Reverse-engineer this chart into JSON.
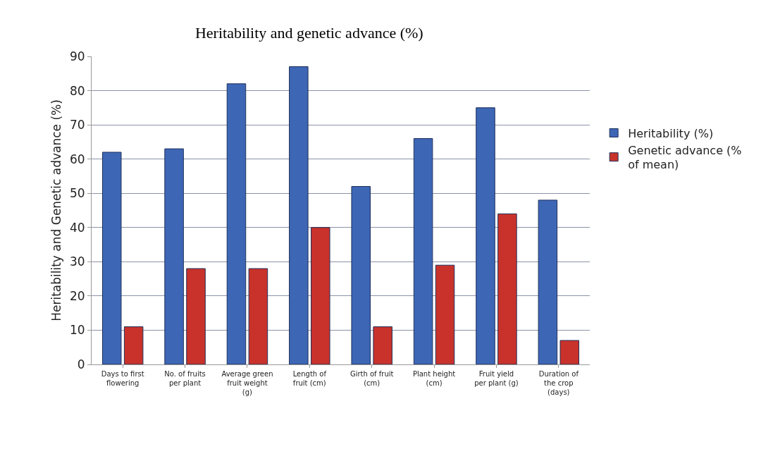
{
  "chart_data": {
    "type": "bar",
    "title": "Heritability and genetic advance (%)",
    "ylabel": "Heritability and Genetic advance (%)",
    "categories": [
      "Days to first flowering",
      "No. of fruits per plant",
      "Average green fruit weight (g)",
      "Length of fruit (cm)",
      "Girth of fruit (cm)",
      "Plant height (cm)",
      "Fruit yield per plant (g)",
      "Duration of the crop (days)"
    ],
    "series": [
      {
        "name": "Heritability (%)",
        "color": "#3d66b5",
        "values": [
          62,
          63,
          82,
          87,
          52,
          66,
          75,
          48
        ]
      },
      {
        "name": "Genetic advance (% of mean)",
        "color": "#c8322b",
        "values": [
          11,
          28,
          28,
          40,
          11,
          29,
          44,
          7
        ]
      }
    ],
    "ylim": [
      0,
      90
    ],
    "yticks": [
      0,
      10,
      20,
      30,
      40,
      50,
      60,
      70,
      80,
      90
    ],
    "grid": "y",
    "legend": "right"
  }
}
